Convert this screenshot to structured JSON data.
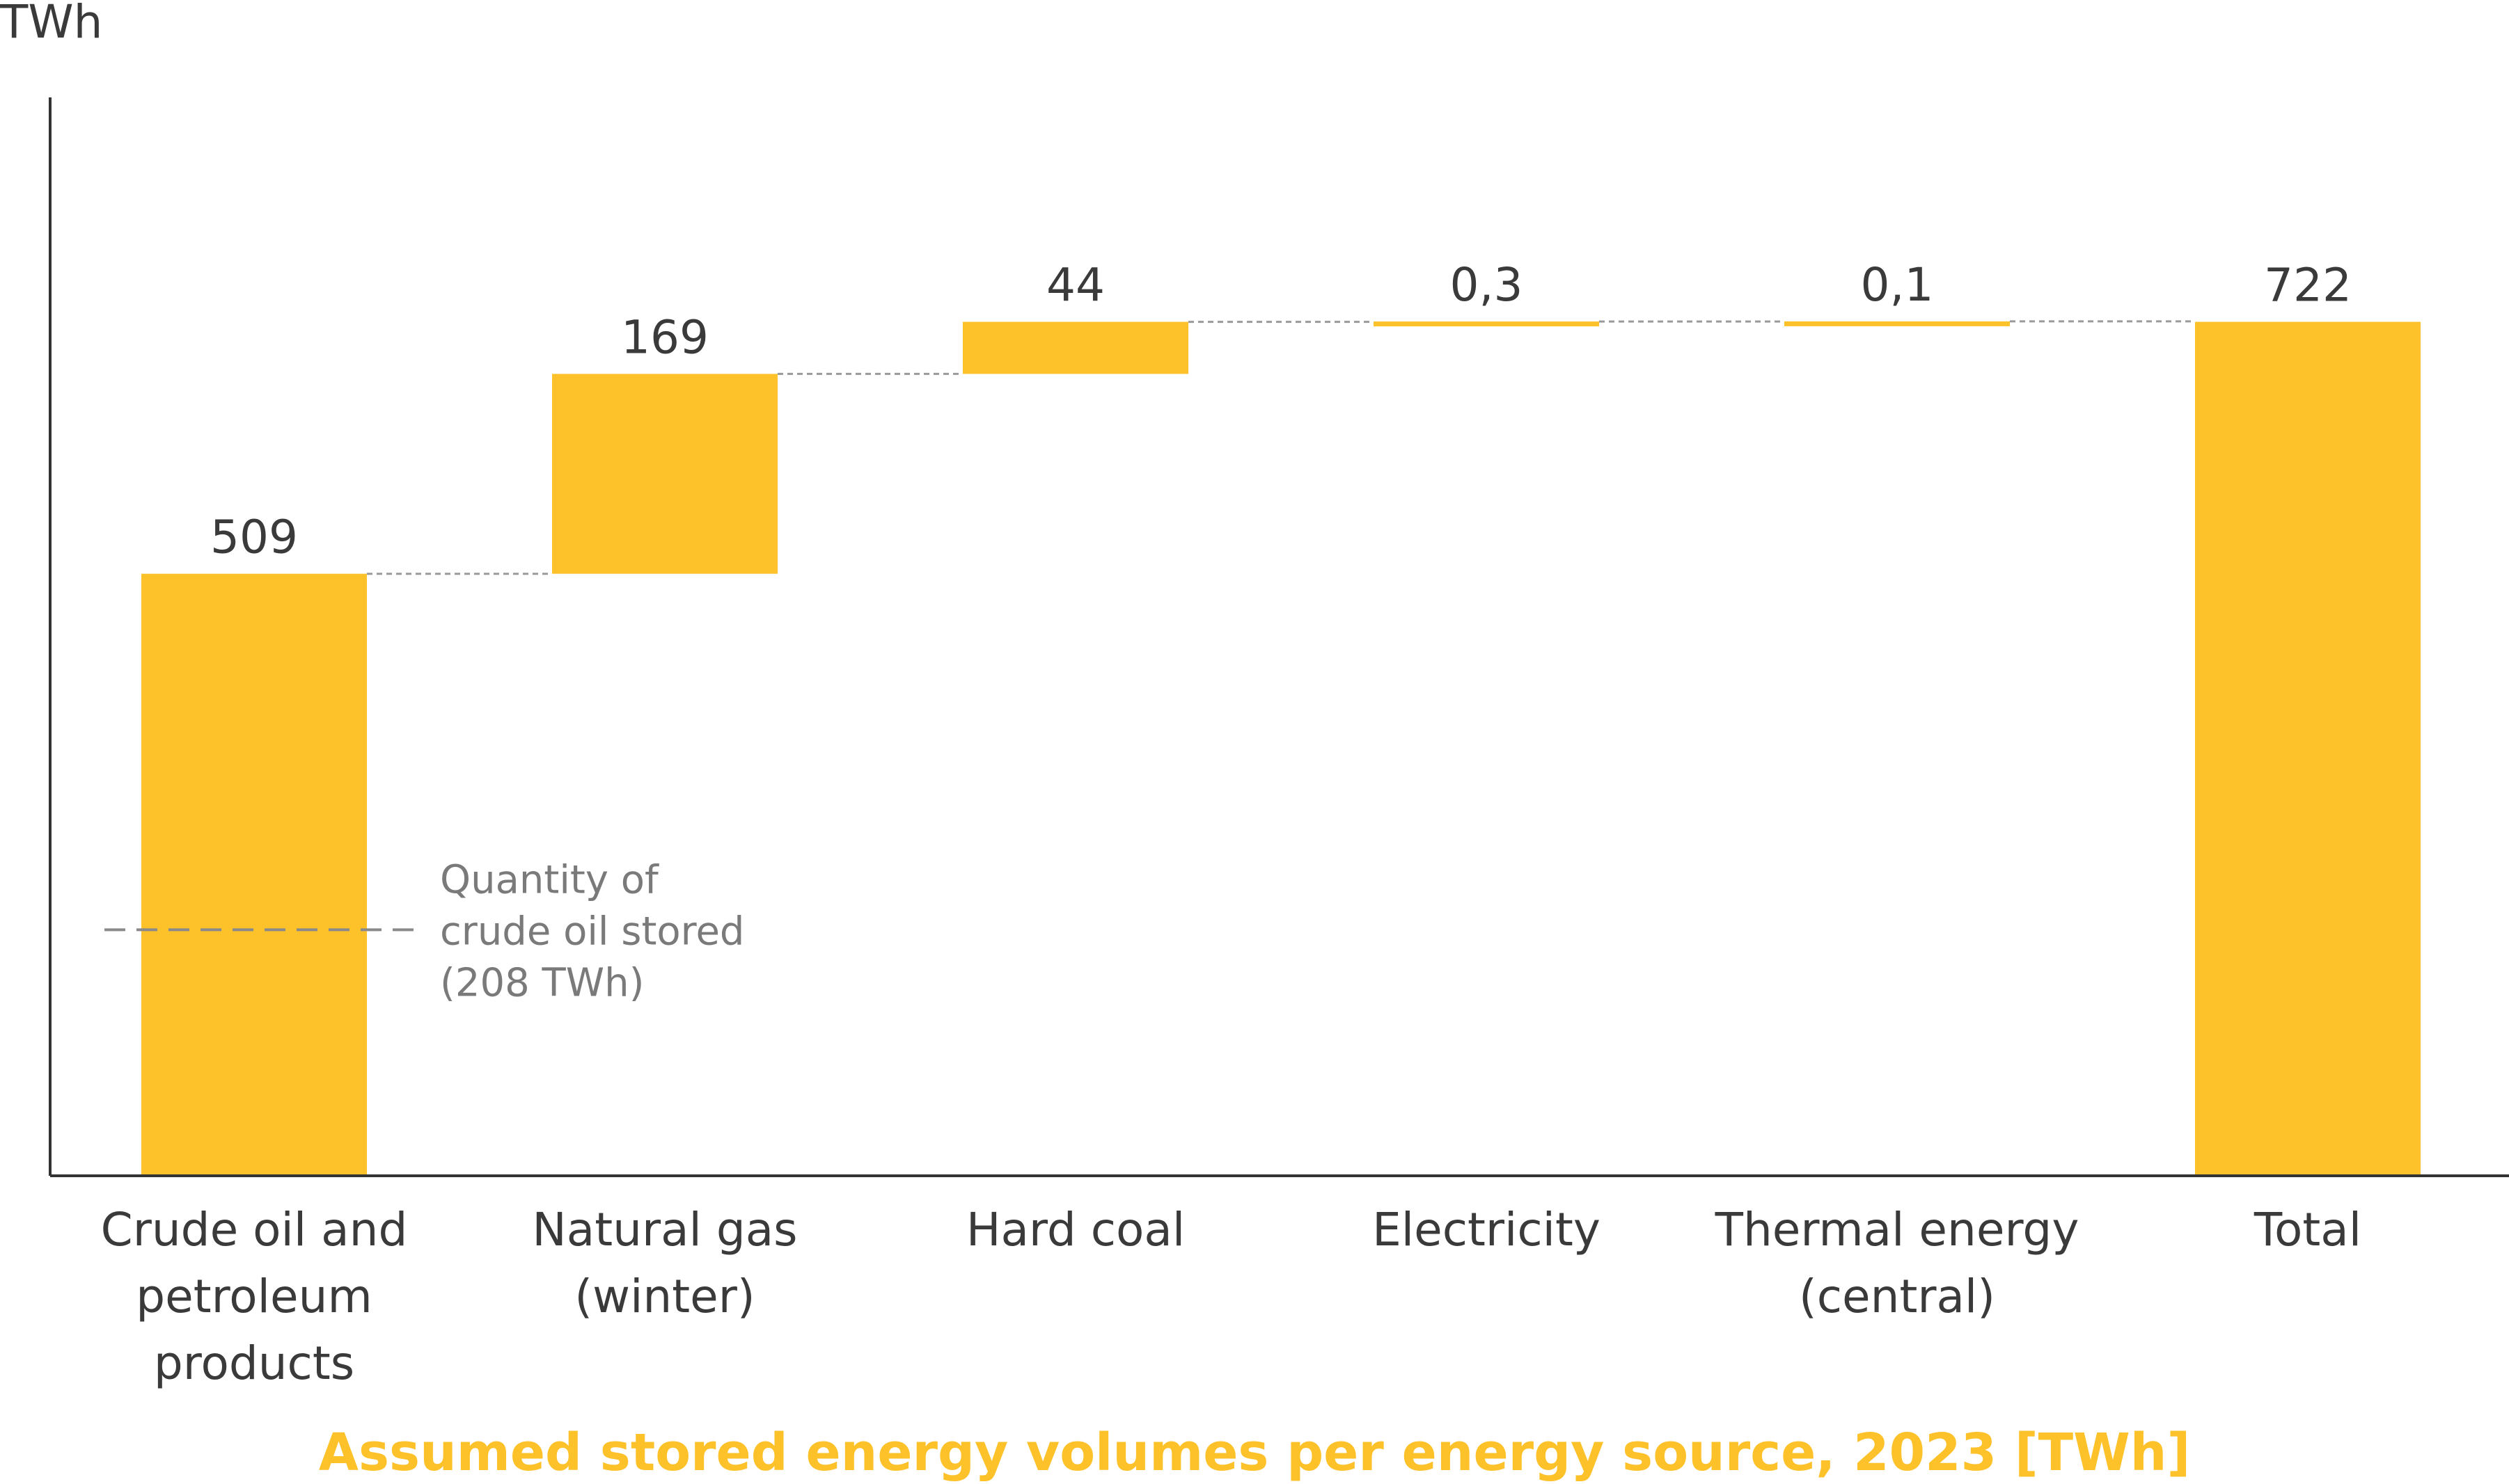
{
  "chart_data": {
    "type": "waterfall",
    "title": "Assumed stored energy volumes per energy source, 2023 [TWh]",
    "ylabel": "TWh",
    "ylim": [
      0,
      800
    ],
    "grid": false,
    "categories": [
      [
        "Crude oil and",
        "petroleum",
        "products"
      ],
      [
        "Natural gas",
        "(winter)"
      ],
      [
        "Hard coal"
      ],
      [
        "Electricity"
      ],
      [
        "Thermal energy",
        "(central)"
      ],
      [
        "Total"
      ]
    ],
    "values": [
      509,
      169,
      44,
      0.3,
      0.1,
      722
    ],
    "value_labels": [
      "509",
      "169",
      "44",
      "0,3",
      "0,1",
      "722"
    ],
    "is_total": [
      false,
      false,
      false,
      false,
      false,
      true
    ],
    "annotation": {
      "value": 208,
      "lines": [
        "Quantity of",
        "crude oil stored",
        "(208 TWh)"
      ]
    },
    "colors": {
      "bar": "#FDC12A",
      "title": "#FDC12A",
      "axis": "#333333",
      "connector": "#9a9a9a",
      "annotation": "#8a8a8a"
    }
  }
}
